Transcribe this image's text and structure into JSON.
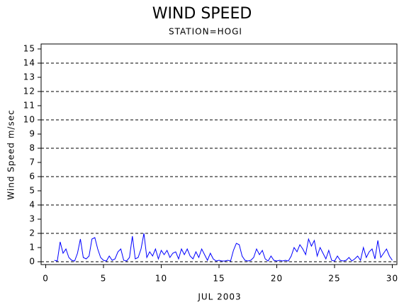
{
  "chart_data": {
    "type": "line",
    "title": "WIND SPEED",
    "subtitle": "STATION=HOGI",
    "ylabel": "Wind Speed m/sec",
    "xlabel": "JUL 2003",
    "color": "#0000ff",
    "xlim": [
      -0.4,
      30.4
    ],
    "xticks": [
      0,
      5,
      10,
      15,
      20,
      25,
      30
    ],
    "ylim": [
      -0.2,
      15.35
    ],
    "yticks": [
      0,
      1,
      2,
      3,
      4,
      5,
      6,
      7,
      8,
      9,
      10,
      11,
      12,
      13,
      14,
      15
    ],
    "ygrid": [
      0,
      2,
      4,
      6,
      8,
      10,
      12,
      14
    ],
    "x": [
      0.75,
      1,
      1.25,
      1.5,
      1.75,
      2,
      2.25,
      2.5,
      2.75,
      3,
      3.25,
      3.5,
      3.75,
      4,
      4.25,
      4.5,
      4.75,
      5,
      5.25,
      5.5,
      5.75,
      6,
      6.25,
      6.5,
      6.75,
      7,
      7.25,
      7.5,
      7.75,
      8,
      8.25,
      8.5,
      8.75,
      9,
      9.25,
      9.5,
      9.75,
      10,
      10.25,
      10.5,
      10.75,
      11,
      11.25,
      11.5,
      11.75,
      12,
      12.25,
      12.5,
      12.75,
      13,
      13.25,
      13.5,
      13.75,
      14,
      14.25,
      14.5,
      14.75,
      15,
      15.25,
      15.5,
      15.75,
      16,
      16.25,
      16.5,
      16.75,
      17,
      17.25,
      17.5,
      17.75,
      18,
      18.25,
      18.5,
      18.75,
      19,
      19.25,
      19.5,
      19.75,
      20,
      20.25,
      20.5,
      20.75,
      21,
      21.25,
      21.5,
      21.75,
      22,
      22.25,
      22.5,
      22.75,
      23,
      23.25,
      23.5,
      23.75,
      24,
      24.25,
      24.5,
      24.75,
      25,
      25.25,
      25.5,
      25.75,
      26,
      26.25,
      26.5,
      26.75,
      27,
      27.25,
      27.5,
      27.75,
      28,
      28.25,
      28.5,
      28.75,
      29,
      29.25,
      29.5,
      29.75,
      30
    ],
    "values": [
      0.1,
      0.05,
      1.4,
      0.6,
      0.9,
      0.3,
      0.1,
      0.05,
      0.6,
      1.6,
      0.3,
      0.2,
      0.4,
      1.6,
      1.7,
      0.9,
      0.3,
      0.1,
      0.05,
      0.4,
      0.1,
      0.2,
      0.7,
      0.9,
      0.1,
      0.05,
      0.3,
      1.8,
      0.2,
      0.3,
      0.9,
      2.0,
      0.3,
      0.7,
      0.4,
      0.9,
      0.2,
      0.8,
      0.5,
      0.8,
      0.3,
      0.6,
      0.7,
      0.2,
      0.9,
      0.5,
      0.9,
      0.4,
      0.2,
      0.7,
      0.3,
      0.9,
      0.5,
      0.1,
      0.6,
      0.2,
      0.05,
      0.1,
      0.05,
      0.05,
      0.1,
      0.05,
      0.8,
      1.3,
      1.2,
      0.4,
      0.1,
      0.05,
      0.1,
      0.3,
      0.9,
      0.5,
      0.8,
      0.2,
      0.05,
      0.4,
      0.1,
      0.05,
      0.1,
      0.05,
      0.1,
      0.05,
      0.4,
      1.0,
      0.7,
      1.2,
      0.9,
      0.5,
      1.6,
      1.1,
      1.5,
      0.4,
      1.0,
      0.6,
      0.2,
      0.8,
      0.1,
      0.05,
      0.4,
      0.1,
      0.05,
      0.1,
      0.3,
      0.05,
      0.2,
      0.4,
      0.1,
      1.0,
      0.3,
      0.7,
      0.9,
      0.2,
      1.5,
      0.3,
      0.6,
      0.9,
      0.4,
      0.1
    ]
  }
}
